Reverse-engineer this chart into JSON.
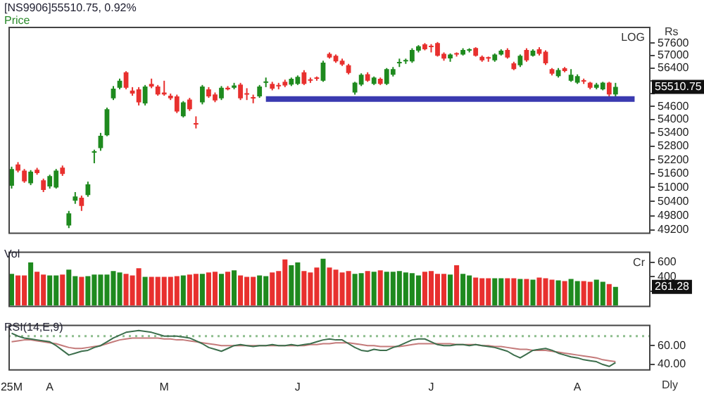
{
  "chart_data": [
    {
      "type": "candlestick",
      "title": "[NS9906]55510.75, 0.92%",
      "subtitle": "Price",
      "log": true,
      "tick_labels": "y",
      "annotations": [
        "LOG",
        "Rs",
        "55510.75"
      ],
      "categories": [
        null,
        null,
        null,
        null,
        null,
        null,
        null,
        null,
        null,
        null,
        null,
        null,
        null,
        null,
        null,
        null,
        null,
        null,
        null,
        null,
        null,
        null,
        null,
        null,
        null,
        null,
        null,
        null,
        null,
        null,
        null,
        null,
        null,
        null,
        null,
        null,
        null,
        null,
        null,
        null,
        null,
        null,
        null,
        null,
        null,
        null,
        null,
        null,
        null,
        null,
        null,
        null,
        null,
        null,
        null,
        null,
        null,
        null,
        null,
        null,
        null,
        null,
        null,
        null,
        null,
        null,
        null,
        null,
        null,
        null,
        null,
        null,
        null,
        null,
        null,
        null,
        null,
        null,
        null,
        null,
        null,
        null,
        null,
        null,
        null,
        null,
        null,
        null,
        null,
        null,
        null,
        null,
        null,
        null,
        null,
        null,
        null,
        null,
        null,
        null,
        null
      ],
      "ylim": [
        49100,
        58400
      ],
      "yticks": [
        49200,
        49800,
        50400,
        51000,
        51600,
        52200,
        52800,
        53400,
        54000,
        54600,
        {
          "value": 55200,
          "label": null
        },
        {
          "value": 55800,
          "label": null
        },
        56400,
        57000,
        57600
      ],
      "ohlc": [
        [
          51070,
          51900,
          50950,
          51800
        ],
        [
          52000,
          52100,
          51650,
          51730
        ],
        [
          51730,
          51800,
          51200,
          51260
        ],
        [
          51180,
          51750,
          51100,
          51680
        ],
        [
          51770,
          51850,
          51550,
          51620
        ],
        [
          51310,
          51380,
          50800,
          50890
        ],
        [
          51040,
          51550,
          50950,
          51490
        ],
        [
          51000,
          51800,
          50950,
          51730
        ],
        [
          51860,
          51950,
          51500,
          51580
        ],
        [
          49390,
          50000,
          49280,
          49900
        ],
        [
          50430,
          50800,
          50300,
          50610
        ],
        [
          50560,
          50650,
          50000,
          50210
        ],
        [
          50670,
          51250,
          50600,
          51130
        ],
        [
          52520,
          52650,
          52050,
          52560
        ],
        [
          52720,
          53400,
          52600,
          53270
        ],
        [
          53290,
          54550,
          53250,
          54480
        ],
        [
          54980,
          55550,
          54900,
          55430
        ],
        [
          55470,
          55900,
          55400,
          55800
        ],
        [
          56200,
          56250,
          55400,
          55470
        ],
        [
          55340,
          55500,
          55100,
          55200
        ],
        [
          55400,
          55500,
          54650,
          54790
        ],
        [
          54740,
          55600,
          54650,
          55530
        ],
        [
          55650,
          55900,
          55450,
          55530
        ],
        [
          55530,
          55600,
          55100,
          55160
        ],
        [
          55250,
          55800,
          55100,
          55160
        ],
        [
          55100,
          55200,
          54900,
          54980
        ],
        [
          55070,
          55150,
          54300,
          54370
        ],
        [
          54150,
          54850,
          54100,
          54790
        ],
        [
          54920,
          55000,
          54400,
          54480
        ],
        [
          53800,
          54150,
          53600,
          53780
        ],
        [
          54790,
          55600,
          54700,
          55530
        ],
        [
          55400,
          55500,
          55000,
          55070
        ],
        [
          55160,
          55250,
          54800,
          54880
        ],
        [
          54980,
          55550,
          54900,
          55470
        ],
        [
          55470,
          55550,
          55350,
          55400
        ],
        [
          55470,
          55700,
          55400,
          55580
        ],
        [
          55620,
          55700,
          54900,
          54980
        ],
        [
          55170,
          55450,
          54900,
          55150
        ],
        [
          54990,
          55150,
          54750,
          54970
        ],
        [
          55070,
          55600,
          55000,
          55530
        ],
        [
          55700,
          55950,
          55500,
          55720
        ],
        [
          55650,
          55750,
          55350,
          55430
        ],
        [
          55560,
          55700,
          55400,
          55540
        ],
        [
          55750,
          55850,
          55500,
          55580
        ],
        [
          55620,
          55950,
          55550,
          55890
        ],
        [
          55650,
          56050,
          55600,
          55980
        ],
        [
          56200,
          56300,
          55600,
          55650
        ],
        [
          55810,
          55950,
          55700,
          55800
        ],
        [
          55900,
          56000,
          55800,
          55890
        ],
        [
          55800,
          56750,
          55750,
          56660
        ],
        [
          57080,
          57150,
          56850,
          56900
        ],
        [
          56990,
          57050,
          56650,
          56720
        ],
        [
          56750,
          56850,
          56500,
          56570
        ],
        [
          56530,
          56600,
          56100,
          56170
        ],
        [
          55250,
          55750,
          55150,
          55710
        ],
        [
          55620,
          56150,
          55550,
          56080
        ],
        [
          56110,
          56200,
          55750,
          55800
        ],
        [
          55650,
          56000,
          55600,
          55950
        ],
        [
          55890,
          55950,
          55600,
          55650
        ],
        [
          55650,
          56400,
          55600,
          56350
        ],
        [
          56080,
          56450,
          56000,
          56350
        ],
        [
          56630,
          56850,
          56450,
          56650
        ],
        [
          56720,
          56850,
          56600,
          56740
        ],
        [
          56720,
          57350,
          56650,
          57270
        ],
        [
          57230,
          57500,
          57150,
          57450
        ],
        [
          57540,
          57600,
          57250,
          57300
        ],
        [
          57420,
          57550,
          57150,
          57400
        ],
        [
          57600,
          57650,
          56950,
          56990
        ],
        [
          57080,
          57150,
          56750,
          56850
        ],
        [
          56860,
          57100,
          56700,
          57050
        ],
        [
          57060,
          57150,
          56950,
          57050
        ],
        [
          57050,
          57350,
          57000,
          57270
        ],
        [
          57230,
          57350,
          57150,
          57250
        ],
        [
          57360,
          57400,
          56950,
          56990
        ],
        [
          56940,
          57000,
          56700,
          56770
        ],
        [
          56860,
          56950,
          56700,
          56850
        ],
        [
          56770,
          57100,
          56700,
          57050
        ],
        [
          57050,
          57300,
          57000,
          57230
        ],
        [
          57270,
          57350,
          56850,
          56900
        ],
        [
          56630,
          56700,
          56300,
          56350
        ],
        [
          56530,
          57050,
          56450,
          56990
        ],
        [
          57270,
          57350,
          56700,
          56770
        ],
        [
          56990,
          57300,
          56950,
          57230
        ],
        [
          57300,
          57400,
          57000,
          57080
        ],
        [
          57180,
          57250,
          56550,
          56630
        ],
        [
          56350,
          56400,
          56050,
          56130
        ],
        [
          56020,
          56400,
          55950,
          56310
        ],
        [
          56390,
          56450,
          56200,
          56260
        ],
        [
          55800,
          56350,
          55750,
          56080
        ],
        [
          55710,
          56100,
          55650,
          56020
        ],
        [
          55770,
          55900,
          55650,
          55760
        ],
        [
          55710,
          55750,
          55400,
          55470
        ],
        [
          55470,
          55700,
          55400,
          55620
        ],
        [
          55400,
          55750,
          55350,
          55710
        ],
        [
          55710,
          55750,
          55000,
          55160
        ],
        [
          55160,
          55700,
          55050,
          55510
        ],
        null,
        null,
        null,
        null,
        null
      ],
      "colors": [
        "#1e8a1e",
        "#e8302e",
        "#e8302e",
        "#1e8a1e",
        "#e8302e",
        "#e8302e",
        "#1e8a1e",
        "#1e8a1e",
        "#e8302e",
        "#1e8a1e",
        "#1e8a1e",
        "#e8302e",
        "#1e8a1e",
        "#1e8a1e",
        "#1e8a1e",
        "#1e8a1e",
        "#1e8a1e",
        "#1e8a1e",
        "#e8302e",
        "#e8302e",
        "#e8302e",
        "#1e8a1e",
        "#e8302e",
        "#e8302e",
        "#e8302e",
        "#e8302e",
        "#e8302e",
        "#1e8a1e",
        "#e8302e",
        "#e8302e",
        "#1e8a1e",
        "#e8302e",
        "#e8302e",
        "#1e8a1e",
        "#e8302e",
        "#1e8a1e",
        "#e8302e",
        "#e8302e",
        "#e8302e",
        "#1e8a1e",
        "#1e8a1e",
        "#e8302e",
        "#e8302e",
        "#e8302e",
        "#1e8a1e",
        "#1e8a1e",
        "#e8302e",
        "#e8302e",
        "#e8302e",
        "#1e8a1e",
        "#e8302e",
        "#e8302e",
        "#e8302e",
        "#e8302e",
        "#1e8a1e",
        "#1e8a1e",
        "#e8302e",
        "#1e8a1e",
        "#e8302e",
        "#1e8a1e",
        "#1e8a1e",
        "#1e8a1e",
        "#1e8a1e",
        "#1e8a1e",
        "#1e8a1e",
        "#e8302e",
        "#e8302e",
        "#e8302e",
        "#e8302e",
        "#1e8a1e",
        "#e8302e",
        "#1e8a1e",
        "#1e8a1e",
        "#e8302e",
        "#e8302e",
        "#e8302e",
        "#1e8a1e",
        "#1e8a1e",
        "#e8302e",
        "#e8302e",
        "#1e8a1e",
        "#e8302e",
        "#1e8a1e",
        "#e8302e",
        "#e8302e",
        "#e8302e",
        "#1e8a1e",
        "#e8302e",
        "#1e8a1e",
        "#1e8a1e",
        "#e8302e",
        "#e8302e",
        "#1e8a1e",
        "#1e8a1e",
        "#e8302e",
        "#1e8a1e",
        null,
        null,
        null,
        null,
        null
      ],
      "series": [
        {
          "type": "line",
          "color": "#3a3ab0",
          "values": [
            null,
            null,
            null,
            null,
            null,
            null,
            null,
            null,
            null,
            null,
            null,
            null,
            null,
            null,
            null,
            null,
            null,
            null,
            null,
            null,
            null,
            null,
            null,
            null,
            null,
            null,
            null,
            null,
            null,
            null,
            null,
            null,
            null,
            null,
            null,
            null,
            null,
            null,
            null,
            null,
            54950,
            54950,
            54950,
            54950,
            54950,
            54950,
            54950,
            54950,
            54950,
            54950,
            54950,
            54950,
            54950,
            54950,
            54950,
            54950,
            54950,
            54950,
            54950,
            54950,
            54950,
            54950,
            54950,
            54950,
            54950,
            54950,
            54950,
            54950,
            54950,
            54950,
            54950,
            54950,
            54950,
            54950,
            54950,
            54950,
            54950,
            54950,
            54950,
            54950,
            54950,
            54950,
            54950,
            54950,
            54950,
            54950,
            54950,
            54950,
            54950,
            54950,
            54950,
            54950,
            54950,
            54950,
            54950,
            54950,
            54950,
            54950,
            54950,
            null,
            null
          ]
        }
      ]
    },
    {
      "type": "bar",
      "title": "Vol",
      "tick_labels": "y",
      "annotations": [
        "Cr",
        "261.28"
      ],
      "categories": [
        null,
        null,
        null,
        null,
        null,
        null,
        null,
        null,
        null,
        null,
        null,
        null,
        null,
        null,
        null,
        null,
        null,
        null,
        null,
        null,
        null,
        null,
        null,
        null,
        null,
        null,
        null,
        null,
        null,
        null,
        null,
        null,
        null,
        null,
        null,
        null,
        null,
        null,
        null,
        null,
        null,
        null,
        null,
        null,
        null,
        null,
        null,
        null,
        null,
        null,
        null,
        null,
        null,
        null,
        null,
        null,
        null,
        null,
        null,
        null,
        null,
        null,
        null,
        null,
        null,
        null,
        null,
        null,
        null,
        null,
        null,
        null,
        null,
        null,
        null,
        null,
        null,
        null,
        null,
        null,
        null,
        null,
        null,
        null,
        null,
        null,
        null,
        null,
        null,
        null,
        null,
        null,
        null,
        null,
        null,
        null,
        null,
        null,
        null,
        null,
        null
      ],
      "ylim": [
        0,
        750
      ],
      "yticks": [
        {
          "value": 200,
          "label": null
        },
        400,
        600
      ],
      "values": [
        440,
        420,
        420,
        600,
        470,
        430,
        420,
        420,
        430,
        500,
        410,
        400,
        410,
        430,
        430,
        430,
        480,
        460,
        440,
        420,
        520,
        400,
        400,
        400,
        400,
        400,
        410,
        420,
        430,
        440,
        440,
        460,
        470,
        440,
        470,
        490,
        420,
        400,
        400,
        420,
        410,
        460,
        480,
        640,
        560,
        600,
        480,
        460,
        530,
        650,
        530,
        500,
        460,
        480,
        440,
        450,
        480,
        470,
        490,
        470,
        470,
        480,
        460,
        450,
        420,
        470,
        480,
        440,
        440,
        430,
        560,
        440,
        420,
        390,
        380,
        380,
        380,
        380,
        380,
        380,
        370,
        370,
        360,
        390,
        380,
        360,
        350,
        340,
        370,
        340,
        340,
        330,
        360,
        330,
        300,
        260,
        null,
        null,
        null,
        null,
        null
      ],
      "colors": [
        "#1e8a1e",
        "#e8302e",
        "#e8302e",
        "#1e8a1e",
        "#e8302e",
        "#e8302e",
        "#1e8a1e",
        "#1e8a1e",
        "#e8302e",
        "#1e8a1e",
        "#1e8a1e",
        "#e8302e",
        "#1e8a1e",
        "#1e8a1e",
        "#1e8a1e",
        "#1e8a1e",
        "#1e8a1e",
        "#1e8a1e",
        "#e8302e",
        "#e8302e",
        "#e8302e",
        "#1e8a1e",
        "#e8302e",
        "#e8302e",
        "#e8302e",
        "#e8302e",
        "#e8302e",
        "#1e8a1e",
        "#e8302e",
        "#e8302e",
        "#1e8a1e",
        "#e8302e",
        "#e8302e",
        "#1e8a1e",
        "#e8302e",
        "#1e8a1e",
        "#e8302e",
        "#e8302e",
        "#e8302e",
        "#1e8a1e",
        "#1e8a1e",
        "#e8302e",
        "#e8302e",
        "#e8302e",
        "#1e8a1e",
        "#1e8a1e",
        "#e8302e",
        "#e8302e",
        "#e8302e",
        "#1e8a1e",
        "#e8302e",
        "#e8302e",
        "#e8302e",
        "#e8302e",
        "#1e8a1e",
        "#1e8a1e",
        "#e8302e",
        "#1e8a1e",
        "#e8302e",
        "#1e8a1e",
        "#1e8a1e",
        "#1e8a1e",
        "#1e8a1e",
        "#1e8a1e",
        "#1e8a1e",
        "#e8302e",
        "#e8302e",
        "#e8302e",
        "#e8302e",
        "#1e8a1e",
        "#e8302e",
        "#1e8a1e",
        "#1e8a1e",
        "#e8302e",
        "#e8302e",
        "#e8302e",
        "#1e8a1e",
        "#1e8a1e",
        "#e8302e",
        "#e8302e",
        "#1e8a1e",
        "#e8302e",
        "#1e8a1e",
        "#e8302e",
        "#e8302e",
        "#e8302e",
        "#1e8a1e",
        "#e8302e",
        "#1e8a1e",
        "#1e8a1e",
        "#e8302e",
        "#e8302e",
        "#1e8a1e",
        "#1e8a1e",
        "#e8302e",
        "#1e8a1e",
        null,
        null,
        null,
        null,
        null
      ]
    },
    {
      "type": "line",
      "title": "RSI(14,E,9)",
      "annotations": [
        "Dly"
      ],
      "categories": [
        "25M",
        null,
        null,
        null,
        null,
        null,
        "A",
        null,
        null,
        null,
        null,
        null,
        null,
        null,
        null,
        null,
        null,
        null,
        null,
        null,
        null,
        null,
        null,
        null,
        "M",
        null,
        null,
        null,
        null,
        null,
        null,
        null,
        null,
        null,
        null,
        null,
        null,
        null,
        null,
        null,
        null,
        null,
        null,
        null,
        null,
        "J",
        null,
        null,
        null,
        null,
        null,
        null,
        null,
        null,
        null,
        null,
        null,
        null,
        null,
        null,
        null,
        null,
        null,
        null,
        null,
        null,
        "J",
        null,
        null,
        null,
        null,
        null,
        null,
        null,
        null,
        null,
        null,
        null,
        null,
        null,
        null,
        null,
        null,
        null,
        null,
        null,
        null,
        null,
        null,
        "A",
        null,
        null,
        null,
        null,
        null,
        null,
        null,
        null,
        null,
        null,
        null
      ],
      "ylim": [
        35,
        82
      ],
      "yticks": [
        {
          "value": 40,
          "label": "40.00"
        },
        {
          "value": 60,
          "label": "60.00"
        }
      ],
      "ref_lines": [
        {
          "axis": "y",
          "value": 70,
          "color": "#8fbf8f",
          "line_style": "dotted"
        }
      ],
      "series": [
        {
          "color": "#3c6e4c",
          "values": [
            73,
            70,
            68,
            67,
            66,
            65,
            64,
            60,
            55,
            50,
            52,
            54,
            55,
            58,
            60,
            64,
            68,
            71,
            74,
            75,
            76,
            75,
            74,
            72,
            70,
            70,
            70,
            69,
            68,
            65,
            62,
            58,
            56,
            54,
            57,
            60,
            61,
            60,
            59,
            60,
            60,
            61,
            60,
            60,
            61,
            60,
            61,
            62,
            64,
            66,
            67,
            66,
            66,
            62,
            58,
            55,
            54,
            56,
            55,
            55,
            58,
            60,
            63,
            66,
            67,
            67,
            64,
            61,
            60,
            60,
            61,
            61,
            60,
            61,
            60,
            59,
            58,
            56,
            54,
            50,
            47,
            51,
            55,
            56,
            57,
            55,
            52,
            50,
            48,
            47,
            45,
            44,
            43,
            40,
            38,
            42,
            null,
            null,
            null,
            null,
            null
          ]
        },
        {
          "color": "#c47a7a",
          "values": [
            64,
            65,
            66,
            66,
            65,
            64,
            63,
            62,
            60,
            58,
            57,
            57,
            58,
            59,
            60,
            62,
            64,
            66,
            67,
            68,
            68,
            68,
            68,
            68,
            67,
            67,
            66,
            66,
            65,
            64,
            63,
            62,
            61,
            60,
            60,
            60,
            60,
            60,
            60,
            60,
            60,
            60,
            60,
            60,
            60,
            60,
            60,
            61,
            61,
            62,
            62,
            63,
            63,
            63,
            62,
            61,
            60,
            60,
            59,
            59,
            59,
            59,
            60,
            61,
            62,
            62,
            62,
            62,
            62,
            62,
            61,
            61,
            61,
            61,
            60,
            60,
            59,
            59,
            58,
            57,
            56,
            56,
            55,
            55,
            55,
            54,
            53,
            52,
            51,
            50,
            49,
            48,
            47,
            45,
            44,
            43,
            null,
            null,
            null,
            null,
            null
          ]
        }
      ]
    }
  ]
}
